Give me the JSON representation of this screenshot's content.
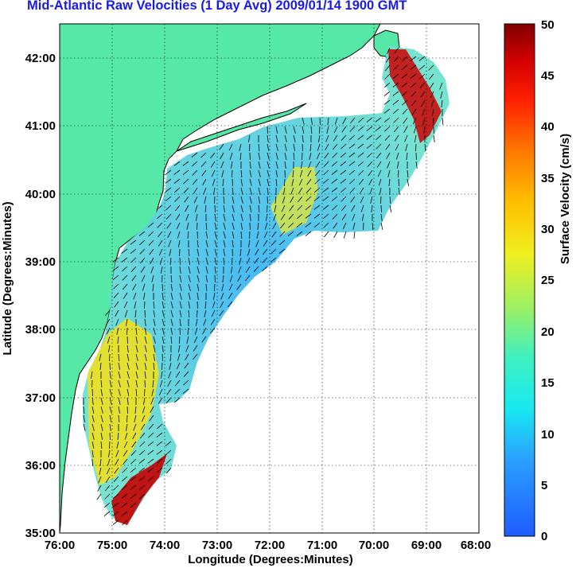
{
  "title": "Mid-Atlantic Raw Velocities (1 Day Avg) 2009/01/14 1900 GMT",
  "map": {
    "xlabel": "Longitude (Degrees:Minutes)",
    "ylabel": "Latitude (Degrees:Minutes)",
    "lon_range": [
      -76,
      -68
    ],
    "lat_range": [
      35,
      42.5
    ],
    "x_ticks": [
      "76:00",
      "75:00",
      "74:00",
      "73:00",
      "72:00",
      "71:00",
      "70:00",
      "69:00",
      "68:00"
    ],
    "y_ticks": [
      "35:00",
      "36:00",
      "37:00",
      "38:00",
      "39:00",
      "40:00",
      "41:00",
      "42:00"
    ],
    "grid": "dotted",
    "land_color": "#55e8a6"
  },
  "colorbar": {
    "label": "Surface Velocity (cm/s)",
    "range": [
      0,
      50
    ],
    "ticks": [
      "0",
      "5",
      "10",
      "15",
      "20",
      "25",
      "30",
      "35",
      "40",
      "45",
      "50"
    ]
  }
}
